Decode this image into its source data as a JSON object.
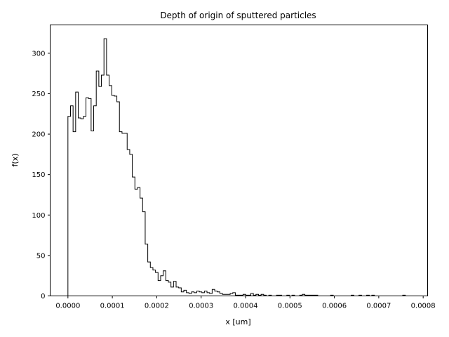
{
  "chart_data": {
    "type": "histogram",
    "title": "Depth of origin of sputtered particles",
    "xlabel": "x [um]",
    "ylabel": "f(x)",
    "xlim": [
      -4e-05,
      0.00081
    ],
    "ylim": [
      0,
      335
    ],
    "xticks": [
      0,
      0.0001,
      0.0002,
      0.0003,
      0.0004,
      0.0005,
      0.0006,
      0.0007,
      0.0008
    ],
    "xtick_labels": [
      "0.0000",
      "0.0001",
      "0.0002",
      "0.0003",
      "0.0004",
      "0.0005",
      "0.0006",
      "0.0007",
      "0.0008"
    ],
    "yticks": [
      0,
      50,
      100,
      150,
      200,
      250,
      300
    ],
    "ytick_labels": [
      "0",
      "50",
      "100",
      "150",
      "200",
      "250",
      "300"
    ],
    "bin_start": 0,
    "bin_width": 5.8e-06,
    "values": [
      222,
      235,
      203,
      252,
      220,
      219,
      222,
      245,
      244,
      204,
      235,
      278,
      259,
      273,
      318,
      273,
      260,
      248,
      247,
      240,
      203,
      201,
      201,
      181,
      175,
      147,
      132,
      134,
      121,
      104,
      64,
      42,
      35,
      32,
      29,
      19,
      25,
      31,
      19,
      17,
      11,
      18,
      11,
      10,
      5,
      7,
      4,
      3,
      5,
      4,
      6,
      5,
      4,
      6,
      4,
      3,
      8,
      6,
      5,
      3,
      2,
      2,
      2,
      3,
      4,
      1,
      1,
      1,
      2,
      1,
      1,
      3,
      1,
      2,
      1,
      2,
      1,
      0,
      1,
      0,
      0,
      1,
      1,
      0,
      0,
      1,
      0,
      1,
      0,
      0,
      1,
      2,
      1,
      1,
      1,
      1,
      1,
      0,
      0,
      0,
      0,
      0,
      1,
      0,
      0,
      0,
      0,
      0,
      0,
      0,
      1,
      0,
      0,
      1,
      0,
      0,
      1,
      0,
      1,
      0,
      0,
      0,
      0,
      0,
      0,
      0,
      0,
      0,
      0,
      0,
      1,
      0,
      0,
      0
    ],
    "grid": false,
    "line_color": "#000000"
  }
}
